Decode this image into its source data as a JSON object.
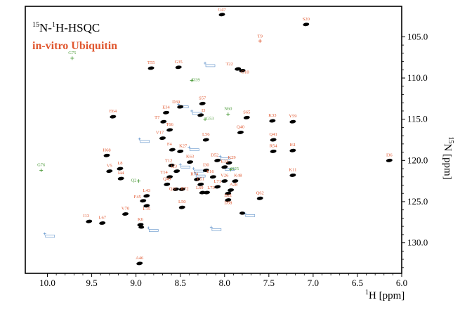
{
  "chart_data": {
    "type": "scatter",
    "title": {
      "prefix_sup": "15",
      "n": "N-",
      "h_sup": "1",
      "rest": "H-HSQC"
    },
    "subtitle": "in-vitro Ubiquitin",
    "xlabel": {
      "sup": "1",
      "text": "H [ppm]"
    },
    "ylabel": {
      "sup": "15",
      "text": "N [ppm]"
    },
    "x_reversed": true,
    "y_reversed": true,
    "xlim": [
      10.25,
      6.0
    ],
    "ylim": [
      101.3,
      133.7
    ],
    "x_ticks": [
      "10.0",
      "9.5",
      "9.0",
      "8.5",
      "8.0",
      "7.5",
      "7.0",
      "6.5",
      "6.0"
    ],
    "y_ticks": [
      "105.0",
      "110.0",
      "115.0",
      "120.0",
      "125.0",
      "130.0"
    ],
    "grid": false,
    "colors": {
      "assigned": "#e0572f",
      "peak": "#000000",
      "green": "#4c9a3a",
      "ref": "#5b8fc9",
      "subtitle": "#e0572f"
    },
    "assigned_peaks": [
      {
        "label": "G47",
        "x": 8.03,
        "y": 102.3,
        "lx": 0,
        "ly": -5
      },
      {
        "label": "S20",
        "x": 7.08,
        "y": 103.5,
        "lx": 0,
        "ly": -6
      },
      {
        "label": "T55",
        "x": 8.83,
        "y": 108.8,
        "lx": 0,
        "ly": -6
      },
      {
        "label": "G35",
        "x": 8.52,
        "y": 108.7,
        "lx": 0,
        "ly": -6
      },
      {
        "label": "T22",
        "x": 7.85,
        "y": 108.9,
        "lx": -12,
        "ly": -5
      },
      {
        "label": "G10",
        "x": 7.8,
        "y": 109.1,
        "lx": 4,
        "ly": 4
      },
      {
        "label": "S57",
        "x": 8.25,
        "y": 113.1,
        "lx": 0,
        "ly": -6
      },
      {
        "label": "D39",
        "x": 8.5,
        "y": 113.5,
        "lx": -6,
        "ly": -5
      },
      {
        "label": "E34",
        "x": 8.66,
        "y": 114.2,
        "lx": 0,
        "ly": -6
      },
      {
        "label": "I3",
        "x": 8.27,
        "y": 114.5,
        "lx": 4,
        "ly": -5
      },
      {
        "label": "E64",
        "x": 9.26,
        "y": 114.7,
        "lx": 0,
        "ly": -6
      },
      {
        "label": "S65",
        "x": 7.75,
        "y": 114.8,
        "lx": 0,
        "ly": -6
      },
      {
        "label": "K33",
        "x": 7.46,
        "y": 115.2,
        "lx": 0,
        "ly": -6
      },
      {
        "label": "Y59",
        "x": 7.23,
        "y": 115.3,
        "lx": 0,
        "ly": -6
      },
      {
        "label": "T7",
        "x": 8.69,
        "y": 115.3,
        "lx": -9,
        "ly": -4
      },
      {
        "label": "T66",
        "x": 8.62,
        "y": 116.3,
        "lx": 0,
        "ly": -6
      },
      {
        "label": "Q40",
        "x": 7.82,
        "y": 116.6,
        "lx": 0,
        "ly": -6
      },
      {
        "label": "V17",
        "x": 8.7,
        "y": 117.3,
        "lx": -4,
        "ly": -6
      },
      {
        "label": "L56",
        "x": 8.21,
        "y": 117.5,
        "lx": 0,
        "ly": -6
      },
      {
        "label": "Q41",
        "x": 7.45,
        "y": 117.5,
        "lx": 0,
        "ly": -6
      },
      {
        "label": "F4",
        "x": 8.59,
        "y": 118.7,
        "lx": -4,
        "ly": -6
      },
      {
        "label": "K27",
        "x": 8.5,
        "y": 118.9,
        "lx": 4,
        "ly": -6
      },
      {
        "label": "H68",
        "x": 9.33,
        "y": 119.4,
        "lx": 0,
        "ly": -6
      },
      {
        "label": "R54",
        "x": 7.45,
        "y": 118.9,
        "lx": 0,
        "ly": -6
      },
      {
        "label": "I61",
        "x": 7.23,
        "y": 118.8,
        "lx": 0,
        "ly": -6
      },
      {
        "label": "K63",
        "x": 8.39,
        "y": 120.2,
        "lx": 0,
        "ly": -6
      },
      {
        "label": "D52",
        "x": 8.08,
        "y": 120.0,
        "lx": -4,
        "ly": -6
      },
      {
        "label": "K29",
        "x": 7.95,
        "y": 120.3,
        "lx": 4,
        "ly": -6
      },
      {
        "label": "I36",
        "x": 6.14,
        "y": 120.0,
        "lx": 0,
        "ly": -6
      },
      {
        "label": "T12",
        "x": 8.6,
        "y": 120.6,
        "lx": -4,
        "ly": -5
      },
      {
        "label": "E32",
        "x": 8.0,
        "y": 120.8,
        "lx": 0,
        "ly": -6
      },
      {
        "label": "I30",
        "x": 8.21,
        "y": 121.2,
        "lx": 0,
        "ly": -6
      },
      {
        "label": "L8",
        "x": 9.18,
        "y": 121.0,
        "lx": 0,
        "ly": -6
      },
      {
        "label": "V5",
        "x": 9.3,
        "y": 121.3,
        "lx": 0,
        "ly": -6
      },
      {
        "label": "I23",
        "x": 8.54,
        "y": 121.3,
        "lx": -4,
        "ly": 0
      },
      {
        "label": "T14",
        "x": 8.62,
        "y": 122.0,
        "lx": -8,
        "ly": 0
      },
      {
        "label": "E16",
        "x": 8.13,
        "y": 122.0,
        "lx": -4,
        "ly": -6
      },
      {
        "label": "R74",
        "x": 8.31,
        "y": 122.3,
        "lx": -4,
        "ly": -6
      },
      {
        "label": "K11",
        "x": 7.23,
        "y": 121.8,
        "lx": 0,
        "ly": -6
      },
      {
        "label": "I44",
        "x": 9.17,
        "y": 122.2,
        "lx": 0,
        "ly": -6
      },
      {
        "label": "V26",
        "x": 8.0,
        "y": 122.5,
        "lx": 0,
        "ly": -6
      },
      {
        "label": "E51",
        "x": 8.27,
        "y": 122.9,
        "lx": 0,
        "ly": -6
      },
      {
        "label": "L71",
        "x": 8.08,
        "y": 123.2,
        "lx": 0,
        "ly": -6
      },
      {
        "label": "K48",
        "x": 7.88,
        "y": 122.5,
        "lx": 4,
        "ly": -6
      },
      {
        "label": "Q49",
        "x": 8.65,
        "y": 122.9,
        "lx": 0,
        "ly": -6
      },
      {
        "label": "A28",
        "x": 7.93,
        "y": 123.6,
        "lx": 4,
        "ly": -6
      },
      {
        "label": "Q31",
        "x": 8.55,
        "y": 123.5,
        "lx": -4,
        "ly": 1
      },
      {
        "label": "R72",
        "x": 8.48,
        "y": 123.5,
        "lx": 4,
        "ly": 1
      },
      {
        "label": "L69",
        "x": 8.25,
        "y": 123.9,
        "lx": -4,
        "ly": 0
      },
      {
        "label": "L73",
        "x": 8.2,
        "y": 123.9,
        "lx": 6,
        "ly": 0
      },
      {
        "label": "D21",
        "x": 7.96,
        "y": 124.0,
        "lx": 0,
        "ly": 5
      },
      {
        "label": "L43",
        "x": 8.88,
        "y": 124.3,
        "lx": 0,
        "ly": -6
      },
      {
        "label": "Q62",
        "x": 7.6,
        "y": 124.6,
        "lx": 0,
        "ly": -6
      },
      {
        "label": "F45",
        "x": 8.92,
        "y": 124.9,
        "lx": -8,
        "ly": -4
      },
      {
        "label": "D58",
        "x": 7.96,
        "y": 124.8,
        "lx": 0,
        "ly": 6
      },
      {
        "label": "L15",
        "x": 8.88,
        "y": 125.5,
        "lx": 0,
        "ly": 6
      },
      {
        "label": "L50",
        "x": 8.48,
        "y": 125.7,
        "lx": 0,
        "ly": -6
      },
      {
        "label": "V70",
        "x": 9.12,
        "y": 126.5,
        "lx": 0,
        "ly": -6
      },
      {
        "label": "I13",
        "x": 9.53,
        "y": 127.4,
        "lx": -4,
        "ly": -6
      },
      {
        "label": "L67",
        "x": 9.38,
        "y": 127.6,
        "lx": 0,
        "ly": -6
      },
      {
        "label": "K6",
        "x": 8.95,
        "y": 127.8,
        "lx": 0,
        "ly": -6
      },
      {
        "label": "A46",
        "x": 8.96,
        "y": 132.5,
        "lx": 0,
        "ly": -6
      }
    ],
    "minor_peaks": [
      {
        "x": 7.8,
        "y": 126.4
      },
      {
        "x": 8.94,
        "y": 128.1
      }
    ],
    "crosses": [
      {
        "label": "T9",
        "x": 7.6,
        "y": 105.5,
        "color": "assigned"
      },
      {
        "label": "D39",
        "x": 8.37,
        "y": 110.3,
        "color": "green",
        "lx": 6,
        "ly": 1
      },
      {
        "label": "G53",
        "x": 8.22,
        "y": 115.0,
        "color": "green",
        "lx": 7,
        "ly": 1
      },
      {
        "label": "N60",
        "x": 7.96,
        "y": 114.4,
        "color": "green",
        "lx": 0,
        "ly": -6
      },
      {
        "label": "N25",
        "x": 7.93,
        "y": 121.1,
        "color": "green",
        "lx": 6,
        "ly": 1
      },
      {
        "label": "Q2",
        "x": 8.97,
        "y": 122.5,
        "color": "green",
        "lx": -7,
        "ly": 1
      },
      {
        "label": "G75",
        "x": 9.72,
        "y": 107.6,
        "color": "green",
        "lx": 0,
        "ly": -6
      },
      {
        "label": "G76",
        "x": 10.07,
        "y": 121.2,
        "color": "green",
        "lx": 0,
        "ly": -6
      }
    ],
    "ref_marks": [
      {
        "x": 8.22,
        "y": 108.2
      },
      {
        "x": 8.52,
        "y": 113.2
      },
      {
        "x": 8.37,
        "y": 114.0
      },
      {
        "x": 8.96,
        "y": 117.4
      },
      {
        "x": 8.4,
        "y": 118.4
      },
      {
        "x": 8.5,
        "y": 120.5
      },
      {
        "x": 8.05,
        "y": 119.5
      },
      {
        "x": 8.35,
        "y": 121.0
      },
      {
        "x": 8.0,
        "y": 120.8
      },
      {
        "x": 8.33,
        "y": 121.6
      },
      {
        "x": 7.77,
        "y": 126.4
      },
      {
        "x": 8.86,
        "y": 128.2
      },
      {
        "x": 8.15,
        "y": 128.1
      },
      {
        "x": 10.03,
        "y": 128.9
      }
    ]
  }
}
